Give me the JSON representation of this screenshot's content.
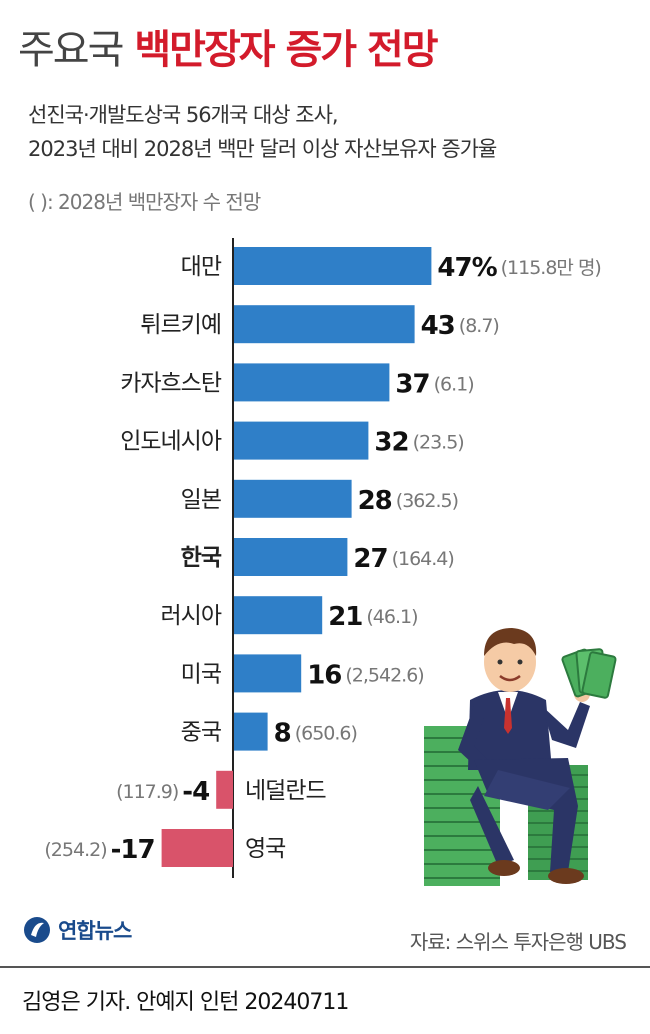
{
  "title": {
    "light": "주요국",
    "bold": "백만장자 증가 전망"
  },
  "subtitle": {
    "line1": "선진국·개발도상국 56개국 대상 조사,",
    "line2": "2023년 대비 2028년 백만 달러 이상 자산보유자 증가율"
  },
  "note": "( ): 2028년 백만장자 수 전망",
  "chart_data": {
    "type": "bar",
    "orientation": "horizontal",
    "categories": [
      "대만",
      "튀르키예",
      "카자흐스탄",
      "인도네시아",
      "일본",
      "한국",
      "러시아",
      "미국",
      "중국",
      "네덜란드",
      "영국"
    ],
    "values": [
      47,
      43,
      37,
      32,
      28,
      27,
      21,
      16,
      8,
      -4,
      -17
    ],
    "value_labels": [
      "47%",
      "43",
      "37",
      "32",
      "28",
      "27",
      "21",
      "16",
      "8",
      "-4",
      "-17"
    ],
    "paren_labels": [
      "(115.8만 명)",
      "(8.7)",
      "(6.1)",
      "(23.5)",
      "(362.5)",
      "(164.4)",
      "(46.1)",
      "(2,542.6)",
      "(650.6)",
      "(117.9)",
      "(254.2)"
    ],
    "highlight": "한국",
    "xlim": [
      -17,
      47
    ],
    "colors": {
      "positive": "#2f7fc8",
      "negative": "#d9536a"
    }
  },
  "logo": {
    "text": "연합뉴스",
    "icon": "yonhap-logo-icon"
  },
  "source": "자료: 스위스 투자은행 UBS",
  "credit": "김영은 기자. 안예지 인턴  20240711",
  "illustration": {
    "icon": "millionaire-illustration"
  },
  "colors": {
    "title_accent": "#d31b2b",
    "logo": "#1a4b8c"
  }
}
